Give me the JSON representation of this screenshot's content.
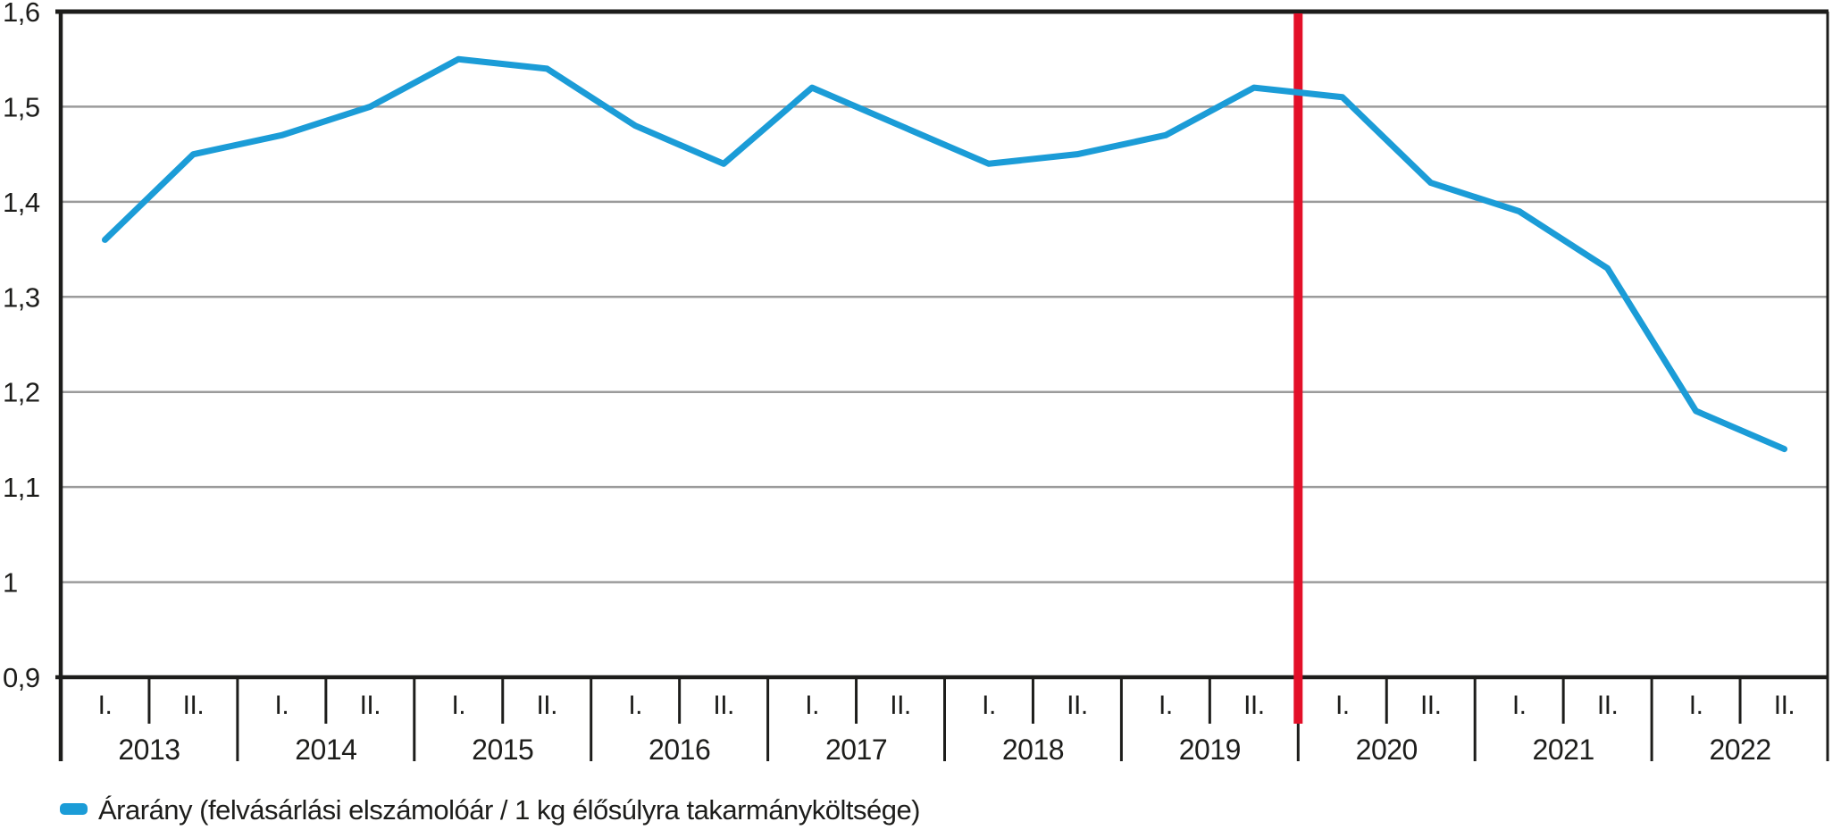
{
  "chart_data": {
    "type": "line",
    "title": "",
    "x_axis": {
      "years": [
        "2013",
        "2014",
        "2015",
        "2016",
        "2017",
        "2018",
        "2019",
        "2020",
        "2021",
        "2022"
      ],
      "half_year_labels": [
        "I.",
        "II."
      ],
      "categories": [
        "2013 I.",
        "2013 II.",
        "2014 I.",
        "2014 II.",
        "2015 I.",
        "2015 II.",
        "2016 I.",
        "2016 II.",
        "2017 I.",
        "2017 II.",
        "2018 I.",
        "2018 II.",
        "2019 I.",
        "2019 II.",
        "2020 I.",
        "2020 II.",
        "2021 I.",
        "2021 II.",
        "2022 I.",
        "2022 II."
      ]
    },
    "y_axis": {
      "min": 0.9,
      "max": 1.6,
      "tick_values": [
        1.6,
        1.5,
        1.4,
        1.3,
        1.2,
        1.1,
        1.0,
        0.9
      ],
      "tick_labels": [
        "1,6",
        "1,5",
        "1,4",
        "1,3",
        "1,2",
        "1,1",
        "1",
        "0,9"
      ],
      "grid": true
    },
    "series": [
      {
        "name": "Árarány (felvásárlási elszámolóár / 1 kg élősúlyra takarmányköltsége)",
        "color": "#1b9cd7",
        "values": [
          1.36,
          1.45,
          1.47,
          1.5,
          1.55,
          1.54,
          1.48,
          1.44,
          1.52,
          1.48,
          1.44,
          1.45,
          1.47,
          1.52,
          1.51,
          1.42,
          1.39,
          1.33,
          1.18,
          1.14
        ]
      }
    ],
    "annotations": [
      {
        "type": "vline",
        "position": "2019/2020 boundary",
        "after_category_index": 13,
        "color": "#e30f28"
      }
    ],
    "legend": {
      "position": "bottom-left",
      "label": "Árarány (felvásárlási elszámolóár / 1 kg élősúlyra takarmányköltsége)"
    },
    "style_colors": {
      "axis": "#1d1d1b",
      "grid": "#9b9b9b",
      "text": "#1d1d1b"
    }
  }
}
